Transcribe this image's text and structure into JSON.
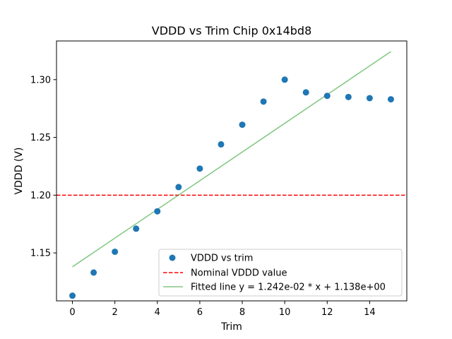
{
  "chart_data": {
    "type": "scatter",
    "title": "VDDD vs Trim Chip 0x14bd8",
    "xlabel": "Trim",
    "ylabel": "VDDD (V)",
    "xlim": [
      -0.75,
      15.75
    ],
    "ylim": [
      1.1085,
      1.3335
    ],
    "xticks": [
      0,
      2,
      4,
      6,
      8,
      10,
      12,
      14
    ],
    "xtick_labels": [
      "0",
      "2",
      "4",
      "6",
      "8",
      "10",
      "12",
      "14"
    ],
    "yticks": [
      1.15,
      1.2,
      1.25,
      1.3
    ],
    "ytick_labels": [
      "1.15",
      "1.20",
      "1.25",
      "1.30"
    ],
    "grid": false,
    "legend_position": "lower-right",
    "series": [
      {
        "name": "VDDD vs trim",
        "kind": "scatter",
        "color": "#1f77b4",
        "x": [
          0,
          1,
          2,
          3,
          4,
          5,
          6,
          7,
          8,
          9,
          10,
          11,
          12,
          13,
          14,
          15
        ],
        "y": [
          1.113,
          1.133,
          1.151,
          1.171,
          1.186,
          1.207,
          1.223,
          1.244,
          1.261,
          1.281,
          1.3,
          1.289,
          1.286,
          1.285,
          1.284,
          1.283
        ]
      },
      {
        "name": "Nominal VDDD value",
        "kind": "hline",
        "color": "#ff0000",
        "y": 1.2
      },
      {
        "name": "Fitted line y = 1.242e-02 * x + 1.138e+00",
        "kind": "line",
        "color": "#2ca02c",
        "slope": 0.01242,
        "intercept": 1.138,
        "x": [
          0,
          15
        ]
      }
    ]
  }
}
